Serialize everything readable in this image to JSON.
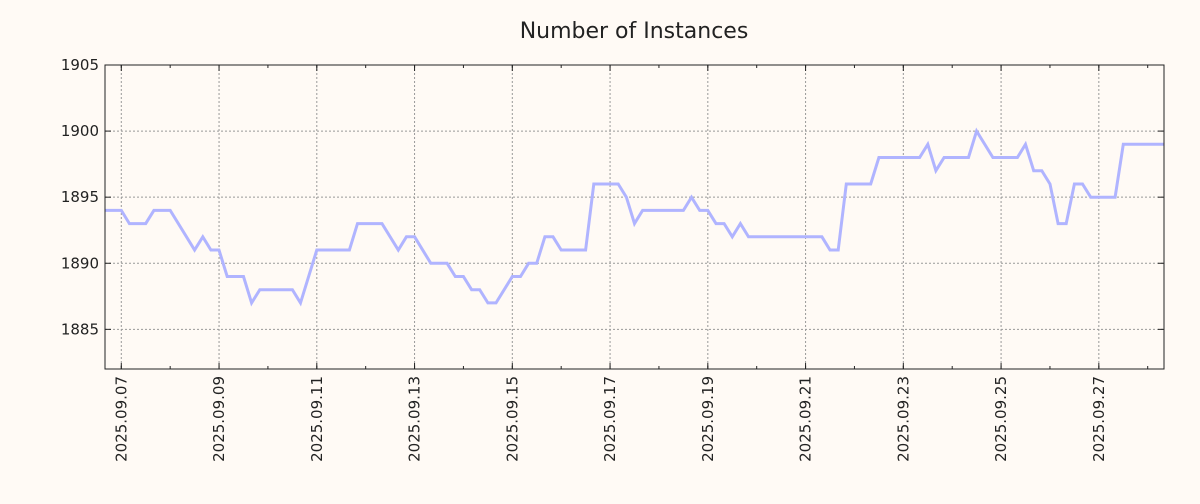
{
  "colors": {
    "background": "#fffaf5",
    "line": "#b0b4ff",
    "grid": "#999999"
  },
  "chart_data": {
    "type": "line",
    "title": "Number of Instances",
    "xlabel": "",
    "ylabel": "",
    "xlim": [
      "2025-09-06 16:00",
      "2025-09-28 08:00"
    ],
    "ylim": [
      1882,
      1905
    ],
    "grid": true,
    "yticks": [
      1885,
      1890,
      1895,
      1900,
      1905
    ],
    "xticks": [
      "2025.09.07",
      "2025.09.09",
      "2025.09.11",
      "2025.09.13",
      "2025.09.15",
      "2025.09.17",
      "2025.09.19",
      "2025.09.21",
      "2025.09.23",
      "2025.09.25",
      "2025.09.27"
    ],
    "series": [
      {
        "name": "Number of Instances",
        "points": [
          [
            "2025-09-06 16:00",
            1894
          ],
          [
            "2025-09-07 00:00",
            1894
          ],
          [
            "2025-09-07 04:00",
            1893
          ],
          [
            "2025-09-07 12:00",
            1893
          ],
          [
            "2025-09-07 16:00",
            1894
          ],
          [
            "2025-09-08 00:00",
            1894
          ],
          [
            "2025-09-08 12:00",
            1891
          ],
          [
            "2025-09-08 16:00",
            1892
          ],
          [
            "2025-09-08 20:00",
            1891
          ],
          [
            "2025-09-09 00:00",
            1891
          ],
          [
            "2025-09-09 04:00",
            1889
          ],
          [
            "2025-09-09 12:00",
            1889
          ],
          [
            "2025-09-09 16:00",
            1887
          ],
          [
            "2025-09-09 20:00",
            1888
          ],
          [
            "2025-09-10 12:00",
            1888
          ],
          [
            "2025-09-10 16:00",
            1887
          ],
          [
            "2025-09-11 00:00",
            1891
          ],
          [
            "2025-09-11 16:00",
            1891
          ],
          [
            "2025-09-11 20:00",
            1893
          ],
          [
            "2025-09-12 08:00",
            1893
          ],
          [
            "2025-09-12 16:00",
            1891
          ],
          [
            "2025-09-12 20:00",
            1892
          ],
          [
            "2025-09-13 00:00",
            1892
          ],
          [
            "2025-09-13 08:00",
            1890
          ],
          [
            "2025-09-13 16:00",
            1890
          ],
          [
            "2025-09-13 20:00",
            1889
          ],
          [
            "2025-09-14 00:00",
            1889
          ],
          [
            "2025-09-14 04:00",
            1888
          ],
          [
            "2025-09-14 08:00",
            1888
          ],
          [
            "2025-09-14 12:00",
            1887
          ],
          [
            "2025-09-14 16:00",
            1887
          ],
          [
            "2025-09-15 00:00",
            1889
          ],
          [
            "2025-09-15 04:00",
            1889
          ],
          [
            "2025-09-15 08:00",
            1890
          ],
          [
            "2025-09-15 12:00",
            1890
          ],
          [
            "2025-09-15 16:00",
            1892
          ],
          [
            "2025-09-15 20:00",
            1892
          ],
          [
            "2025-09-16 00:00",
            1891
          ],
          [
            "2025-09-16 12:00",
            1891
          ],
          [
            "2025-09-16 16:00",
            1896
          ],
          [
            "2025-09-17 04:00",
            1896
          ],
          [
            "2025-09-17 08:00",
            1895
          ],
          [
            "2025-09-17 12:00",
            1893
          ],
          [
            "2025-09-17 16:00",
            1894
          ],
          [
            "2025-09-18 12:00",
            1894
          ],
          [
            "2025-09-18 16:00",
            1895
          ],
          [
            "2025-09-18 20:00",
            1894
          ],
          [
            "2025-09-19 00:00",
            1894
          ],
          [
            "2025-09-19 04:00",
            1893
          ],
          [
            "2025-09-19 08:00",
            1893
          ],
          [
            "2025-09-19 12:00",
            1892
          ],
          [
            "2025-09-19 16:00",
            1893
          ],
          [
            "2025-09-19 20:00",
            1892
          ],
          [
            "2025-09-21 08:00",
            1892
          ],
          [
            "2025-09-21 12:00",
            1891
          ],
          [
            "2025-09-21 16:00",
            1891
          ],
          [
            "2025-09-21 20:00",
            1896
          ],
          [
            "2025-09-22 08:00",
            1896
          ],
          [
            "2025-09-22 12:00",
            1898
          ],
          [
            "2025-09-23 08:00",
            1898
          ],
          [
            "2025-09-23 12:00",
            1899
          ],
          [
            "2025-09-23 16:00",
            1897
          ],
          [
            "2025-09-23 20:00",
            1898
          ],
          [
            "2025-09-24 08:00",
            1898
          ],
          [
            "2025-09-24 12:00",
            1900
          ],
          [
            "2025-09-24 20:00",
            1898
          ],
          [
            "2025-09-25 08:00",
            1898
          ],
          [
            "2025-09-25 12:00",
            1899
          ],
          [
            "2025-09-25 16:00",
            1897
          ],
          [
            "2025-09-25 20:00",
            1897
          ],
          [
            "2025-09-26 00:00",
            1896
          ],
          [
            "2025-09-26 04:00",
            1893
          ],
          [
            "2025-09-26 08:00",
            1893
          ],
          [
            "2025-09-26 12:00",
            1896
          ],
          [
            "2025-09-26 16:00",
            1896
          ],
          [
            "2025-09-26 20:00",
            1895
          ],
          [
            "2025-09-27 08:00",
            1895
          ],
          [
            "2025-09-27 12:00",
            1899
          ],
          [
            "2025-09-28 08:00",
            1899
          ]
        ]
      }
    ]
  }
}
